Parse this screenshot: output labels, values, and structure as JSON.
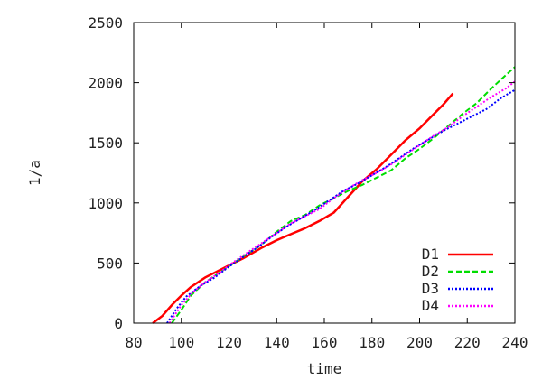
{
  "chart_data": {
    "type": "line",
    "title": "",
    "xlabel": "time",
    "ylabel": "1/a",
    "xlim": [
      80,
      240
    ],
    "ylim": [
      0,
      2500
    ],
    "xticks": [
      80,
      100,
      120,
      140,
      160,
      180,
      200,
      220,
      240
    ],
    "yticks": [
      0,
      500,
      1000,
      1500,
      2000,
      2500
    ],
    "grid": false,
    "legend_position": "bottom-right",
    "series": [
      {
        "name": "D1",
        "color": "#ff0000",
        "dash": "solid",
        "x": [
          88,
          92,
          96,
          100,
          104,
          110,
          118,
          126,
          134,
          140,
          146,
          152,
          158,
          164,
          170,
          176,
          182,
          188,
          194,
          200,
          206,
          210,
          214
        ],
        "y": [
          0,
          60,
          150,
          230,
          300,
          380,
          460,
          540,
          630,
          690,
          740,
          790,
          850,
          920,
          1050,
          1180,
          1280,
          1400,
          1520,
          1620,
          1740,
          1820,
          1910
        ]
      },
      {
        "name": "D2",
        "color": "#00dd00",
        "dash": "dashed",
        "x": [
          96,
          100,
          104,
          110,
          116,
          122,
          128,
          134,
          140,
          146,
          152,
          158,
          164,
          170,
          176,
          182,
          188,
          194,
          200,
          206,
          212,
          218,
          224,
          230,
          236,
          240
        ],
        "y": [
          0,
          110,
          230,
          340,
          420,
          500,
          580,
          660,
          760,
          850,
          900,
          980,
          1040,
          1100,
          1150,
          1210,
          1270,
          1370,
          1450,
          1540,
          1640,
          1740,
          1830,
          1950,
          2060,
          2130
        ]
      },
      {
        "name": "D3",
        "color": "#0000ff",
        "dash": "dotted",
        "x": [
          94,
          98,
          102,
          108,
          114,
          120,
          126,
          132,
          138,
          144,
          150,
          156,
          162,
          168,
          174,
          180,
          186,
          192,
          198,
          204,
          210,
          216,
          222,
          228,
          234,
          240
        ],
        "y": [
          0,
          120,
          220,
          310,
          380,
          470,
          550,
          630,
          720,
          800,
          870,
          940,
          1020,
          1100,
          1160,
          1230,
          1300,
          1380,
          1460,
          1530,
          1600,
          1660,
          1720,
          1780,
          1870,
          1940
        ]
      },
      {
        "name": "D4",
        "color": "#ff00ff",
        "dash": "dotted",
        "x": [
          95,
          100,
          105,
          110,
          116,
          122,
          128,
          134,
          140,
          146,
          152,
          158,
          164,
          170,
          176,
          182,
          188,
          194,
          200,
          206,
          212,
          218,
          224,
          230,
          236,
          240
        ],
        "y": [
          0,
          150,
          260,
          340,
          420,
          510,
          590,
          670,
          750,
          830,
          890,
          950,
          1040,
          1120,
          1190,
          1250,
          1320,
          1400,
          1480,
          1560,
          1630,
          1720,
          1800,
          1880,
          1950,
          2010
        ]
      }
    ]
  }
}
